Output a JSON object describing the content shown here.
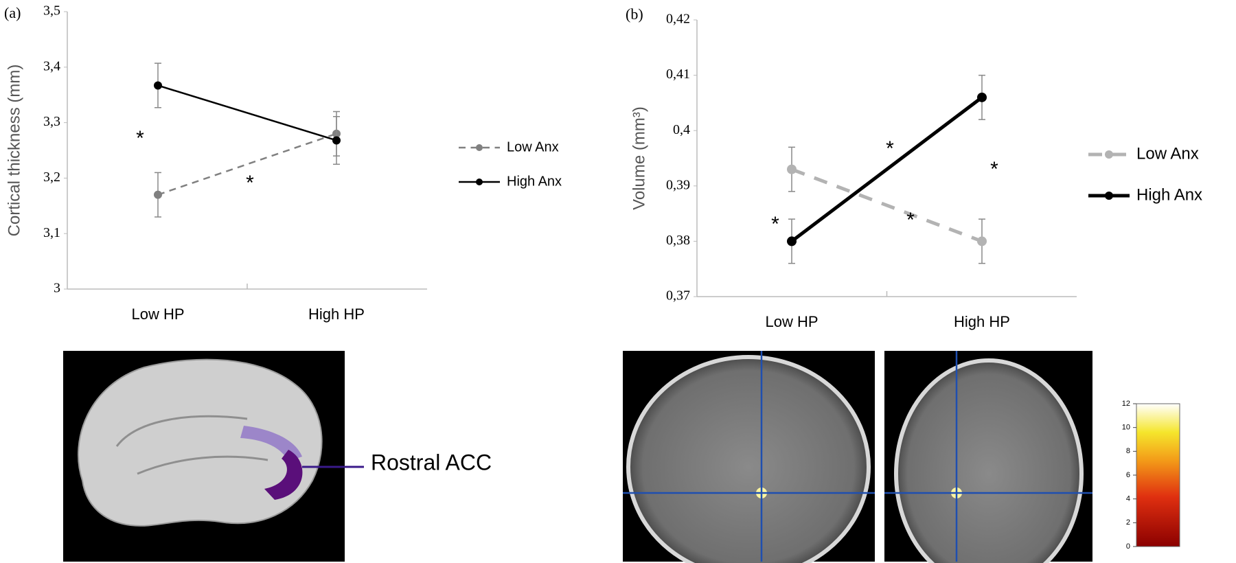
{
  "chart_data": [
    {
      "type": "line",
      "panel_label": "(a)",
      "ylabel": "Cortical thickness (mm)",
      "categories": [
        "Low HP",
        "High HP"
      ],
      "series": [
        {
          "name": "Low Anx",
          "color": "#808080",
          "dashed": true,
          "values": [
            3.17,
            3.28
          ],
          "errors": [
            0.04,
            0.04
          ]
        },
        {
          "name": "High Anx",
          "color": "#000000",
          "dashed": false,
          "values": [
            3.367,
            3.268
          ],
          "errors": [
            0.04,
            0.043
          ]
        }
      ],
      "ylim": [
        3,
        3.5
      ],
      "yticks": [
        3,
        {
          "value": 3.1,
          "label": "3,1"
        },
        {
          "value": 3.2,
          "label": "3,2"
        },
        {
          "value": 3.3,
          "label": "3,3"
        },
        {
          "value": 3.4,
          "label": "3,4"
        },
        {
          "value": 3.5,
          "label": "3,5"
        }
      ],
      "annotations": [
        "*",
        "*"
      ]
    },
    {
      "type": "line",
      "panel_label": "(b)",
      "ylabel": "Volume (mm³)",
      "categories": [
        "Low HP",
        "High HP"
      ],
      "series": [
        {
          "name": "Low Anx",
          "color": "#b3b3b3",
          "dashed": true,
          "values": [
            0.393,
            0.38
          ],
          "errors": [
            0.004,
            0.004
          ]
        },
        {
          "name": "High Anx",
          "color": "#000000",
          "dashed": false,
          "values": [
            0.38,
            0.406
          ],
          "errors": [
            0.004,
            0.004
          ]
        }
      ],
      "ylim": [
        0.37,
        0.42
      ],
      "yticks": [
        {
          "value": 0.37,
          "label": "0,37"
        },
        {
          "value": 0.38,
          "label": "0,38"
        },
        {
          "value": 0.39,
          "label": "0,39"
        },
        {
          "value": 0.4,
          "label": "0,4"
        },
        {
          "value": 0.41,
          "label": "0,41"
        },
        {
          "value": 0.42,
          "label": "0,42"
        }
      ],
      "annotations": [
        "*",
        "*",
        "*",
        "*"
      ]
    }
  ],
  "brain_label": "Rostral ACC",
  "colorbar": {
    "lim": [
      0,
      12
    ],
    "ticks": [
      0,
      2,
      4,
      6,
      8,
      10,
      12
    ]
  }
}
